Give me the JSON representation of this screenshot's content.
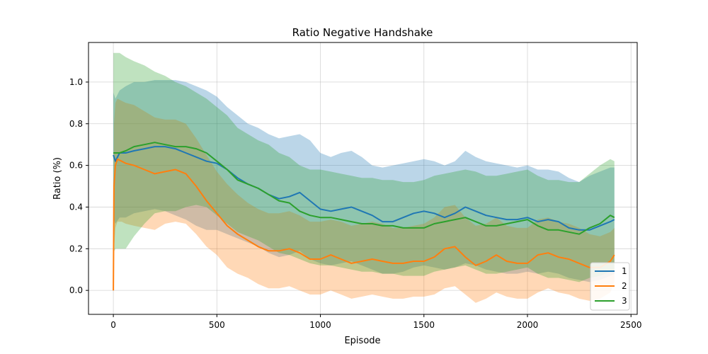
{
  "chart_data": {
    "type": "line",
    "title": "Ratio Negative Handshake",
    "xlabel": "Episode",
    "ylabel": "Ratio (%)",
    "xlim": [
      -120,
      2530
    ],
    "ylim": [
      -0.115,
      1.19
    ],
    "xticks": [
      0,
      500,
      1000,
      1500,
      2000,
      2500
    ],
    "xtick_labels": [
      "0",
      "500",
      "1000",
      "1500",
      "2000",
      "2500"
    ],
    "yticks": [
      0.0,
      0.2,
      0.4,
      0.6,
      0.8,
      1.0
    ],
    "ytick_labels": [
      "0.0",
      "0.2",
      "0.4",
      "0.6",
      "0.8",
      "1.0"
    ],
    "grid": true,
    "legend_position": "bottom-right",
    "series": [
      {
        "name": "1",
        "color": "#1f77b4",
        "x": [
          0,
          10,
          30,
          60,
          100,
          150,
          200,
          250,
          300,
          350,
          400,
          450,
          500,
          550,
          600,
          650,
          700,
          750,
          800,
          850,
          900,
          950,
          1000,
          1050,
          1100,
          1150,
          1200,
          1250,
          1300,
          1350,
          1400,
          1450,
          1500,
          1550,
          1600,
          1650,
          1700,
          1750,
          1800,
          1850,
          1900,
          1950,
          2000,
          2050,
          2100,
          2150,
          2200,
          2250,
          2300,
          2350,
          2400,
          2420
        ],
        "y": [
          0.65,
          0.62,
          0.66,
          0.66,
          0.67,
          0.68,
          0.69,
          0.69,
          0.68,
          0.66,
          0.64,
          0.62,
          0.61,
          0.58,
          0.54,
          0.51,
          0.49,
          0.46,
          0.44,
          0.45,
          0.47,
          0.43,
          0.39,
          0.38,
          0.39,
          0.4,
          0.38,
          0.36,
          0.33,
          0.33,
          0.35,
          0.37,
          0.38,
          0.37,
          0.35,
          0.37,
          0.4,
          0.38,
          0.36,
          0.35,
          0.34,
          0.34,
          0.35,
          0.33,
          0.34,
          0.33,
          0.3,
          0.29,
          0.29,
          0.31,
          0.33,
          0.34
        ],
        "upper": [
          0.95,
          0.92,
          0.96,
          0.98,
          1.0,
          1.0,
          1.01,
          1.01,
          1.01,
          1.0,
          0.98,
          0.96,
          0.93,
          0.88,
          0.84,
          0.8,
          0.78,
          0.75,
          0.73,
          0.74,
          0.75,
          0.72,
          0.66,
          0.64,
          0.66,
          0.67,
          0.64,
          0.6,
          0.59,
          0.6,
          0.61,
          0.62,
          0.63,
          0.62,
          0.6,
          0.62,
          0.67,
          0.64,
          0.62,
          0.61,
          0.6,
          0.59,
          0.6,
          0.58,
          0.58,
          0.57,
          0.54,
          0.52,
          0.55,
          0.57,
          0.59,
          0.59
        ],
        "lower": [
          0.35,
          0.32,
          0.35,
          0.35,
          0.37,
          0.38,
          0.39,
          0.38,
          0.36,
          0.34,
          0.31,
          0.29,
          0.29,
          0.27,
          0.25,
          0.23,
          0.21,
          0.18,
          0.16,
          0.17,
          0.19,
          0.15,
          0.13,
          0.12,
          0.13,
          0.14,
          0.12,
          0.1,
          0.08,
          0.08,
          0.09,
          0.11,
          0.12,
          0.11,
          0.1,
          0.11,
          0.13,
          0.12,
          0.1,
          0.09,
          0.08,
          0.08,
          0.09,
          0.08,
          0.09,
          0.08,
          0.06,
          0.05,
          0.04,
          0.05,
          0.07,
          0.08
        ]
      },
      {
        "name": "2",
        "color": "#ff7f0e",
        "x": [
          0,
          3,
          10,
          20,
          40,
          60,
          100,
          150,
          200,
          250,
          300,
          350,
          400,
          450,
          500,
          550,
          600,
          650,
          700,
          750,
          800,
          850,
          900,
          950,
          1000,
          1050,
          1100,
          1150,
          1200,
          1250,
          1300,
          1350,
          1400,
          1450,
          1500,
          1550,
          1600,
          1650,
          1700,
          1750,
          1800,
          1850,
          1900,
          1950,
          2000,
          2050,
          2100,
          2150,
          2200,
          2250,
          2300,
          2350,
          2400,
          2420
        ],
        "y": [
          0.0,
          0.5,
          0.6,
          0.63,
          0.62,
          0.61,
          0.6,
          0.58,
          0.56,
          0.57,
          0.58,
          0.56,
          0.5,
          0.43,
          0.37,
          0.31,
          0.27,
          0.24,
          0.21,
          0.19,
          0.19,
          0.2,
          0.18,
          0.15,
          0.15,
          0.17,
          0.15,
          0.13,
          0.14,
          0.15,
          0.14,
          0.13,
          0.13,
          0.14,
          0.14,
          0.16,
          0.2,
          0.21,
          0.16,
          0.12,
          0.14,
          0.17,
          0.14,
          0.13,
          0.13,
          0.17,
          0.18,
          0.16,
          0.15,
          0.13,
          0.11,
          0.11,
          0.14,
          0.17
        ],
        "upper": [
          0.0,
          0.8,
          0.9,
          0.92,
          0.91,
          0.9,
          0.89,
          0.86,
          0.83,
          0.82,
          0.82,
          0.8,
          0.73,
          0.65,
          0.57,
          0.51,
          0.46,
          0.42,
          0.39,
          0.37,
          0.37,
          0.38,
          0.36,
          0.33,
          0.33,
          0.34,
          0.33,
          0.31,
          0.32,
          0.33,
          0.32,
          0.3,
          0.3,
          0.31,
          0.32,
          0.35,
          0.4,
          0.41,
          0.35,
          0.31,
          0.32,
          0.35,
          0.31,
          0.3,
          0.3,
          0.34,
          0.35,
          0.33,
          0.32,
          0.3,
          0.27,
          0.26,
          0.28,
          0.3
        ],
        "lower": [
          0.0,
          0.2,
          0.3,
          0.33,
          0.33,
          0.32,
          0.31,
          0.3,
          0.29,
          0.32,
          0.33,
          0.32,
          0.27,
          0.21,
          0.17,
          0.11,
          0.08,
          0.06,
          0.03,
          0.01,
          0.01,
          0.02,
          0.0,
          -0.02,
          -0.02,
          0.0,
          -0.02,
          -0.04,
          -0.03,
          -0.02,
          -0.03,
          -0.04,
          -0.04,
          -0.03,
          -0.03,
          -0.02,
          0.01,
          0.02,
          -0.02,
          -0.06,
          -0.04,
          -0.01,
          -0.03,
          -0.04,
          -0.04,
          -0.01,
          0.01,
          -0.01,
          -0.02,
          -0.04,
          -0.05,
          -0.04,
          -0.01,
          0.04
        ]
      },
      {
        "name": "3",
        "color": "#2ca02c",
        "x": [
          0,
          10,
          30,
          60,
          100,
          150,
          200,
          250,
          300,
          350,
          400,
          450,
          500,
          550,
          600,
          650,
          700,
          750,
          800,
          850,
          900,
          950,
          1000,
          1050,
          1100,
          1150,
          1200,
          1250,
          1300,
          1350,
          1400,
          1450,
          1500,
          1550,
          1600,
          1650,
          1700,
          1750,
          1800,
          1850,
          1900,
          1950,
          2000,
          2050,
          2100,
          2150,
          2200,
          2250,
          2300,
          2350,
          2400,
          2420
        ],
        "y": [
          0.66,
          0.66,
          0.66,
          0.67,
          0.69,
          0.7,
          0.71,
          0.7,
          0.69,
          0.69,
          0.68,
          0.66,
          0.62,
          0.58,
          0.53,
          0.51,
          0.49,
          0.46,
          0.43,
          0.42,
          0.38,
          0.36,
          0.35,
          0.35,
          0.34,
          0.33,
          0.32,
          0.32,
          0.31,
          0.31,
          0.3,
          0.3,
          0.3,
          0.32,
          0.33,
          0.34,
          0.35,
          0.33,
          0.31,
          0.31,
          0.32,
          0.33,
          0.34,
          0.31,
          0.29,
          0.29,
          0.28,
          0.27,
          0.3,
          0.32,
          0.36,
          0.35
        ],
        "upper": [
          1.14,
          1.14,
          1.14,
          1.12,
          1.1,
          1.08,
          1.05,
          1.03,
          1.0,
          0.98,
          0.95,
          0.92,
          0.88,
          0.84,
          0.78,
          0.75,
          0.72,
          0.7,
          0.66,
          0.64,
          0.6,
          0.58,
          0.58,
          0.57,
          0.56,
          0.55,
          0.54,
          0.54,
          0.53,
          0.53,
          0.52,
          0.52,
          0.53,
          0.55,
          0.56,
          0.57,
          0.58,
          0.57,
          0.55,
          0.55,
          0.56,
          0.57,
          0.58,
          0.55,
          0.53,
          0.53,
          0.52,
          0.52,
          0.56,
          0.6,
          0.63,
          0.62
        ],
        "lower": [
          0.18,
          0.2,
          0.2,
          0.2,
          0.26,
          0.32,
          0.37,
          0.38,
          0.38,
          0.4,
          0.41,
          0.4,
          0.36,
          0.32,
          0.28,
          0.26,
          0.24,
          0.21,
          0.18,
          0.17,
          0.15,
          0.13,
          0.12,
          0.12,
          0.11,
          0.1,
          0.09,
          0.09,
          0.08,
          0.08,
          0.07,
          0.07,
          0.07,
          0.09,
          0.1,
          0.11,
          0.12,
          0.1,
          0.08,
          0.08,
          0.09,
          0.1,
          0.11,
          0.08,
          0.06,
          0.06,
          0.05,
          0.04,
          0.06,
          0.07,
          0.09,
          0.09
        ]
      }
    ]
  }
}
